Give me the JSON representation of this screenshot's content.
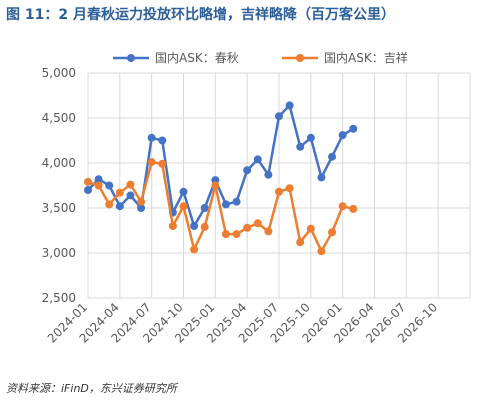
{
  "header": {
    "title": "图 11：2 月春秋运力投放环比略增，吉祥略降（百万客公里）"
  },
  "footer": {
    "source": "资料来源：iFinD，东兴证券研究所"
  },
  "chart_data": {
    "type": "line",
    "title": "",
    "xlabel": "",
    "ylabel": "",
    "ylim": [
      2500,
      5000
    ],
    "yticks": [
      2500,
      3000,
      3500,
      4000,
      4500,
      5000
    ],
    "xticks": [
      "2024-01",
      "2024-04",
      "2024-07",
      "2024-10",
      "2025-01",
      "2025-04",
      "2025-07",
      "2025-10",
      "2026-01",
      "2026-04",
      "2026-07",
      "2026-10"
    ],
    "x": [
      "2024-01",
      "2024-02",
      "2024-03",
      "2024-04",
      "2024-05",
      "2024-06",
      "2024-07",
      "2024-08",
      "2024-09",
      "2024-10",
      "2024-11",
      "2024-12",
      "2025-01",
      "2025-02",
      "2025-03",
      "2025-04",
      "2025-05",
      "2025-06",
      "2025-07",
      "2025-08",
      "2025-09",
      "2025-10",
      "2025-11",
      "2025-12",
      "2026-01",
      "2026-02"
    ],
    "grid": true,
    "legend_position": "top",
    "series": [
      {
        "name": "国内ASK：春秋",
        "color": "#4472c4",
        "values": [
          3700,
          3820,
          3750,
          3520,
          3640,
          3500,
          4280,
          4250,
          3450,
          3680,
          3300,
          3500,
          3810,
          3540,
          3570,
          3920,
          4040,
          3870,
          4520,
          4640,
          4180,
          4280,
          3840,
          4070,
          4310,
          4380
        ]
      },
      {
        "name": "国内ASK：吉祥",
        "color": "#ed7d31",
        "values": [
          3790,
          3750,
          3540,
          3670,
          3760,
          3570,
          4010,
          3990,
          3300,
          3520,
          3040,
          3290,
          3750,
          3210,
          3210,
          3280,
          3330,
          3240,
          3680,
          3720,
          3120,
          3270,
          3020,
          3230,
          3520,
          3490
        ]
      }
    ]
  }
}
